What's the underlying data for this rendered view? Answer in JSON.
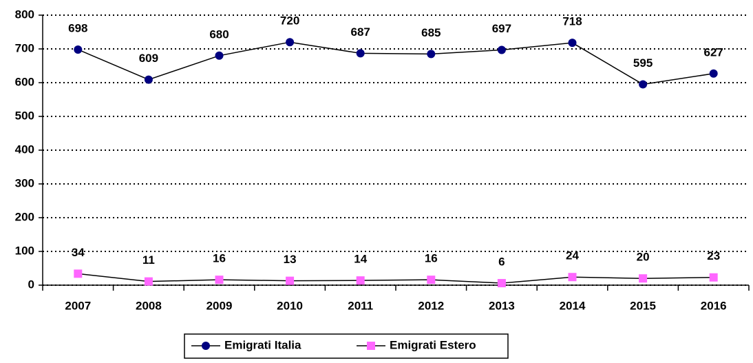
{
  "chart_data": {
    "type": "line",
    "categories": [
      "2007",
      "2008",
      "2009",
      "2010",
      "2011",
      "2012",
      "2013",
      "2014",
      "2015",
      "2016"
    ],
    "series": [
      {
        "name": "Emigrati Italia",
        "color": "#000080",
        "marker": "circle",
        "values": [
          698,
          609,
          680,
          720,
          687,
          685,
          697,
          718,
          595,
          627
        ]
      },
      {
        "name": "Emigrati Estero",
        "color": "#ff66ff",
        "marker": "square",
        "values": [
          34,
          11,
          16,
          13,
          14,
          16,
          6,
          24,
          20,
          23
        ]
      }
    ],
    "ylim": [
      0,
      800
    ],
    "yticks": [
      0,
      100,
      200,
      300,
      400,
      500,
      600,
      700,
      800
    ],
    "grid": true,
    "legend": "bottom"
  }
}
